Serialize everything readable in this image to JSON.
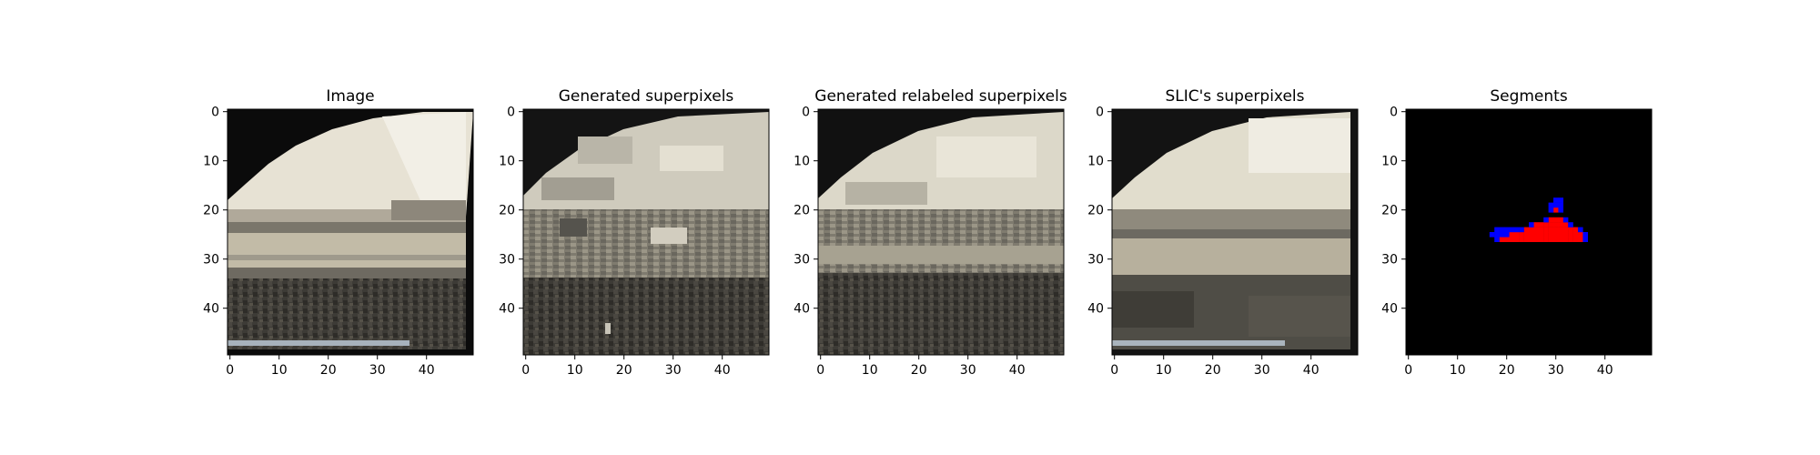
{
  "figure": {
    "panel_titles": [
      "Image",
      "Generated superpixels",
      "Generated relabeled superpixels",
      "SLIC's superpixels",
      "Segments"
    ]
  },
  "chart_data": [
    {
      "type": "heatmap",
      "title": "Image",
      "xlabel": "",
      "ylabel": "",
      "xticks": [
        0,
        10,
        20,
        30,
        40
      ],
      "yticks": [
        0,
        10,
        20,
        30,
        40
      ],
      "xlim": [
        0,
        50
      ],
      "ylim": [
        50,
        0
      ],
      "grid": false,
      "content": "photo",
      "colors": {
        "sky": "#ece8dc",
        "water": "#b4ae9b",
        "ground": "#3c3a34",
        "border": "#0a0a0a"
      }
    },
    {
      "type": "heatmap",
      "title": "Generated superpixels",
      "xlabel": "",
      "ylabel": "",
      "xticks": [
        0,
        10,
        20,
        30,
        40
      ],
      "yticks": [
        0,
        10,
        20,
        30,
        40
      ],
      "xlim": [
        0,
        50
      ],
      "ylim": [
        50,
        0
      ],
      "grid": false,
      "content": "superpixels",
      "colors": {
        "sky": "#d6d3c6",
        "mid": "#6c6a62",
        "ground": "#4a4944",
        "border": "#1a1a1a"
      }
    },
    {
      "type": "heatmap",
      "title": "Generated relabeled superpixels",
      "xlabel": "",
      "ylabel": "",
      "xticks": [
        0,
        10,
        20,
        30,
        40
      ],
      "yticks": [
        0,
        10,
        20,
        30,
        40
      ],
      "xlim": [
        0,
        50
      ],
      "ylim": [
        50,
        0
      ],
      "grid": false,
      "content": "relabeled",
      "colors": {
        "sky": "#dedacb",
        "mid": "#8a877c",
        "ground": "#4e4c45",
        "border": "#121212"
      }
    },
    {
      "type": "heatmap",
      "title": "SLIC's superpixels",
      "xlabel": "",
      "ylabel": "",
      "xticks": [
        0,
        10,
        20,
        30,
        40
      ],
      "yticks": [
        0,
        10,
        20,
        30,
        40
      ],
      "xlim": [
        0,
        50
      ],
      "ylim": [
        50,
        0
      ],
      "grid": false,
      "content": "slic",
      "colors": {
        "sky": "#e2dece",
        "mid": "#9a9484",
        "ground": "#4d4b44",
        "border": "#151515"
      }
    },
    {
      "type": "heatmap",
      "title": "Segments",
      "xlabel": "",
      "ylabel": "",
      "xticks": [
        0,
        10,
        20,
        30,
        40
      ],
      "yticks": [
        0,
        10,
        20,
        30,
        40
      ],
      "xlim": [
        0,
        50
      ],
      "ylim": [
        50,
        0
      ],
      "grid": false,
      "content": "segments",
      "colors": {
        "background": "#000000",
        "segment_red": "#ff0000",
        "segment_blue": "#0000ff"
      },
      "segment_cells": {
        "red": [
          [
            21,
            25
          ],
          [
            22,
            25
          ],
          [
            23,
            25
          ],
          [
            24,
            25
          ],
          [
            25,
            25
          ],
          [
            26,
            25
          ],
          [
            27,
            25
          ],
          [
            28,
            25
          ],
          [
            29,
            25
          ],
          [
            30,
            25
          ],
          [
            31,
            25
          ],
          [
            32,
            25
          ],
          [
            33,
            25
          ],
          [
            34,
            25
          ],
          [
            35,
            25
          ],
          [
            19,
            26
          ],
          [
            20,
            26
          ],
          [
            21,
            26
          ],
          [
            22,
            26
          ],
          [
            23,
            26
          ],
          [
            24,
            26
          ],
          [
            25,
            26
          ],
          [
            26,
            26
          ],
          [
            27,
            26
          ],
          [
            28,
            26
          ],
          [
            29,
            26
          ],
          [
            30,
            26
          ],
          [
            31,
            26
          ],
          [
            32,
            26
          ],
          [
            33,
            26
          ],
          [
            34,
            26
          ],
          [
            35,
            26
          ],
          [
            24,
            24
          ],
          [
            25,
            24
          ],
          [
            26,
            24
          ],
          [
            27,
            24
          ],
          [
            28,
            24
          ],
          [
            29,
            24
          ],
          [
            30,
            24
          ],
          [
            31,
            24
          ],
          [
            32,
            24
          ],
          [
            33,
            24
          ],
          [
            34,
            24
          ],
          [
            26,
            23
          ],
          [
            27,
            23
          ],
          [
            28,
            23
          ],
          [
            29,
            23
          ],
          [
            30,
            23
          ],
          [
            31,
            23
          ],
          [
            32,
            23
          ],
          [
            29,
            22
          ],
          [
            30,
            22
          ],
          [
            31,
            22
          ],
          [
            30,
            20
          ]
        ],
        "blue": [
          [
            30,
            18
          ],
          [
            31,
            18
          ],
          [
            29,
            19
          ],
          [
            30,
            19
          ],
          [
            31,
            19
          ],
          [
            29,
            20
          ],
          [
            31,
            20
          ],
          [
            28,
            22
          ],
          [
            32,
            22
          ],
          [
            25,
            23
          ],
          [
            33,
            23
          ],
          [
            18,
            24
          ],
          [
            19,
            24
          ],
          [
            20,
            24
          ],
          [
            21,
            24
          ],
          [
            22,
            24
          ],
          [
            23,
            24
          ],
          [
            35,
            24
          ],
          [
            17,
            25
          ],
          [
            18,
            25
          ],
          [
            19,
            25
          ],
          [
            20,
            25
          ],
          [
            36,
            25
          ],
          [
            18,
            26
          ],
          [
            36,
            26
          ]
        ]
      }
    }
  ]
}
